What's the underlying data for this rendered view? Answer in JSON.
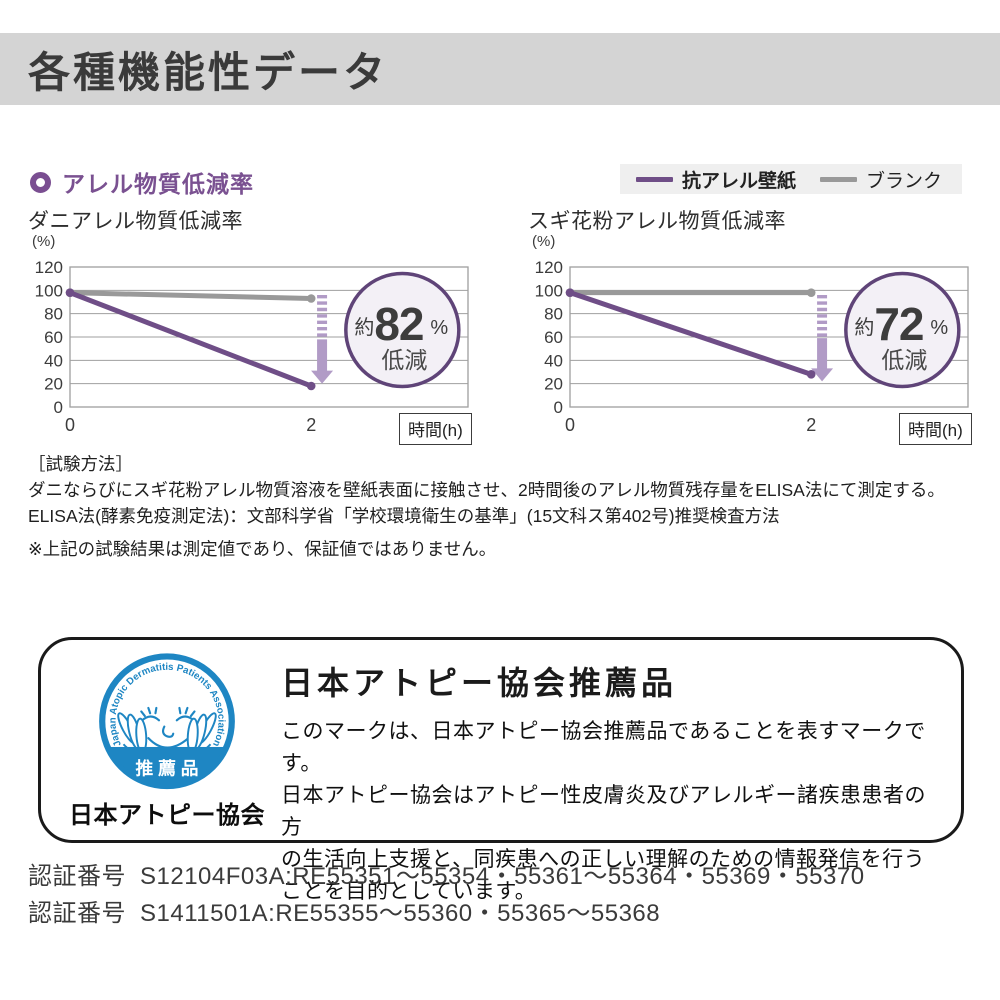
{
  "header": {
    "title": "各種機能性データ",
    "bg": "#d4d4d4"
  },
  "section": {
    "title": "アレル物質低減率",
    "color": "#7a5191"
  },
  "legend": {
    "bg": "#efefef",
    "items": [
      {
        "label": "抗アレル壁紙",
        "color": "#6f4e87",
        "bold": true
      },
      {
        "label": "ブランク",
        "color": "#999999",
        "bold": false
      }
    ]
  },
  "chart_data": [
    {
      "type": "line",
      "title": "ダニアレル物質低減率",
      "ylabel": "(%)",
      "xlabel": "時間(h)",
      "ylim": [
        0,
        120
      ],
      "xlim": [
        0,
        3.3
      ],
      "yticks": [
        0,
        20,
        40,
        60,
        80,
        100,
        120
      ],
      "xticks": [
        0,
        2
      ],
      "grid": true,
      "series": [
        {
          "name": "抗アレル壁紙",
          "color": "#6f4e87",
          "points": [
            [
              0,
              98
            ],
            [
              2,
              18
            ]
          ]
        },
        {
          "name": "ブランク",
          "color": "#999999",
          "points": [
            [
              0,
              98
            ],
            [
              2,
              93
            ]
          ]
        }
      ],
      "arrow": {
        "x": 2.09,
        "from": 96,
        "to": 20,
        "color": "#b19bc6"
      },
      "badge": {
        "prefix": "約",
        "value": "82",
        "unit": "%",
        "suffix": "低減",
        "fill": "#f3f0f6",
        "border": "#5f4478"
      }
    },
    {
      "type": "line",
      "title": "スギ花粉アレル物質低減率",
      "ylabel": "(%)",
      "xlabel": "時間(h)",
      "ylim": [
        0,
        120
      ],
      "xlim": [
        0,
        3.3
      ],
      "yticks": [
        0,
        20,
        40,
        60,
        80,
        100,
        120
      ],
      "xticks": [
        0,
        2
      ],
      "grid": true,
      "series": [
        {
          "name": "抗アレル壁紙",
          "color": "#6f4e87",
          "points": [
            [
              0,
              98
            ],
            [
              2,
              28
            ]
          ]
        },
        {
          "name": "ブランク",
          "color": "#999999",
          "points": [
            [
              0,
              98
            ],
            [
              2,
              98
            ]
          ]
        }
      ],
      "arrow": {
        "x": 2.09,
        "from": 96,
        "to": 22,
        "color": "#b19bc6"
      },
      "badge": {
        "prefix": "約",
        "value": "72",
        "unit": "%",
        "suffix": "低減",
        "fill": "#f3f0f6",
        "border": "#5f4478"
      }
    }
  ],
  "notes": {
    "heading": "［試験方法］",
    "line1": "ダニならびにスギ花粉アレル物質溶液を壁紙表面に接触させ、2時間後のアレル物質残存量をELISA法にて測定する。",
    "line2": "ELISA法(酵素免疫測定法)：文部科学省「学校環境衛生の基準」(15文科ス第402号)推奨検査方法",
    "disclaimer": "※上記の試験結果は測定値であり、保証値ではありません。"
  },
  "certification": {
    "heading": "日本アトピー協会推薦品",
    "body_lines": [
      "このマークは、日本アトピー協会推薦品であることを表すマークです。",
      "日本アトピー協会はアトピー性皮膚炎及びアレルギー諸疾患患者の方",
      "の生活向上支援と、同疾患への正しい理解のための情報発信を行う",
      "ことを目的としています。"
    ],
    "logo": {
      "ring_text": "Japan Atopic Dermatitis Patients Association",
      "band_label": "推 薦 品",
      "caption": "日本アトピー協会",
      "color": "#1e86c3"
    }
  },
  "cert_numbers": [
    {
      "label": "認証番号",
      "value": "S12104F03A:RE55351～55354・55361～55364・55369・55370"
    },
    {
      "label": "認証番号",
      "value": "S1411501A:RE55355～55360・55365～55368"
    }
  ]
}
